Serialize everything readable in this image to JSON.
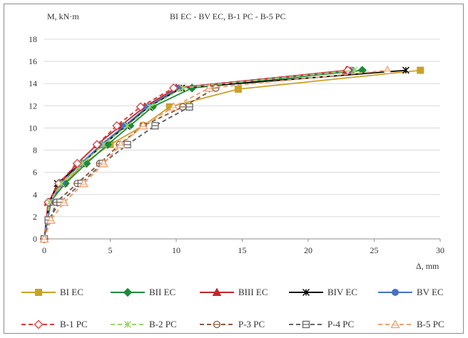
{
  "chart_data": {
    "type": "line",
    "title": "BI EC - BV EC, B-1 PC - B-5 PC",
    "ylabel": "M, kN·m",
    "xlabel": "Δ, mm",
    "xlim": [
      0,
      30
    ],
    "ylim": [
      0,
      18
    ],
    "x_ticks": [
      0,
      5,
      10,
      15,
      20,
      25,
      30
    ],
    "y_ticks": [
      0,
      2,
      4,
      6,
      8,
      10,
      12,
      14,
      16,
      18
    ],
    "grid": "horizontal",
    "legend_position": "bottom",
    "series": [
      {
        "name": "BI EC",
        "color": "#c9a227",
        "dash": "solid",
        "marker": "square",
        "x": [
          0,
          0.5,
          1.5,
          3,
          5,
          7.5,
          9.5,
          14.7,
          28.5
        ],
        "y": [
          0,
          3.3,
          5.0,
          6.8,
          8.5,
          10.2,
          11.9,
          13.5,
          15.2
        ]
      },
      {
        "name": "BII EC",
        "color": "#1e8a3c",
        "dash": "solid",
        "marker": "diamond",
        "x": [
          0,
          0.4,
          1.6,
          3.2,
          4.8,
          6.5,
          8.2,
          11.2,
          24.1
        ],
        "y": [
          0,
          3.3,
          5.0,
          6.8,
          8.5,
          10.2,
          11.9,
          13.6,
          15.2
        ]
      },
      {
        "name": "BIII EC",
        "color": "#c0262d",
        "dash": "solid",
        "marker": "triangle",
        "x": [
          0,
          0.3,
          1.2,
          2.5,
          4.0,
          5.8,
          7.6,
          10.0,
          22.9
        ],
        "y": [
          0,
          3.3,
          5.0,
          6.8,
          8.5,
          10.2,
          11.9,
          13.6,
          15.2
        ]
      },
      {
        "name": "BIV EC",
        "color": "#000000",
        "dash": "solid",
        "marker": "asterisk",
        "x": [
          0,
          0.4,
          1.0,
          2.8,
          4.5,
          6.2,
          7.9,
          10.4,
          27.4
        ],
        "y": [
          0,
          3.3,
          5.0,
          6.8,
          8.5,
          10.2,
          11.9,
          13.6,
          15.2
        ]
      },
      {
        "name": "BV EC",
        "color": "#4472c4",
        "dash": "solid",
        "marker": "circle",
        "x": [
          0,
          0.5,
          1.3,
          2.8,
          4.3,
          6.1,
          7.8,
          10.2,
          23.3
        ],
        "y": [
          0,
          3.3,
          5.0,
          6.8,
          8.5,
          10.2,
          11.9,
          13.6,
          15.2
        ]
      },
      {
        "name": "B-1 PC",
        "color": "#e03a3e",
        "dash": "dashed",
        "marker": "diamond-open",
        "x": [
          0,
          0.3,
          1.1,
          2.5,
          4.0,
          5.5,
          7.3,
          9.8,
          23.0
        ],
        "y": [
          0,
          3.3,
          5.0,
          6.8,
          8.5,
          10.2,
          11.9,
          13.6,
          15.2
        ]
      },
      {
        "name": "B-2 PC",
        "color": "#9bd36a",
        "dash": "dashed",
        "marker": "asterisk",
        "x": [
          0,
          0.4,
          1.3,
          2.9,
          4.5,
          6.3,
          8.0,
          10.5,
          23.5
        ],
        "y": [
          0,
          3.3,
          5.0,
          6.8,
          8.5,
          10.2,
          11.9,
          13.6,
          15.2
        ]
      },
      {
        "name": "P-3 PC",
        "color": "#8b5a3c",
        "dash": "dashed",
        "marker": "circle-bar",
        "x": [
          0,
          0.9,
          2.5,
          4.2,
          5.7,
          7.5,
          10.5,
          13.0
        ],
        "y": [
          0,
          3.3,
          5.0,
          6.8,
          8.5,
          10.2,
          11.9,
          13.6
        ]
      },
      {
        "name": "P-4 PC",
        "color": "#666666",
        "dash": "dashed",
        "marker": "square-bar",
        "x": [
          0,
          0.3,
          1.2,
          2.8,
          4.4,
          6.3,
          8.4,
          11.0
        ],
        "y": [
          0,
          1.7,
          3.3,
          5.0,
          6.8,
          8.5,
          10.2,
          11.9
        ]
      },
      {
        "name": "B-5 PC",
        "color": "#f0a070",
        "dash": "dashed",
        "marker": "triangle-open",
        "x": [
          0,
          0.5,
          1.5,
          3.0,
          4.5,
          5.8,
          7.5,
          9.8,
          12.5,
          26.0
        ],
        "y": [
          0,
          1.7,
          3.3,
          5.0,
          6.8,
          8.5,
          10.2,
          11.9,
          13.6,
          15.2
        ]
      }
    ]
  }
}
